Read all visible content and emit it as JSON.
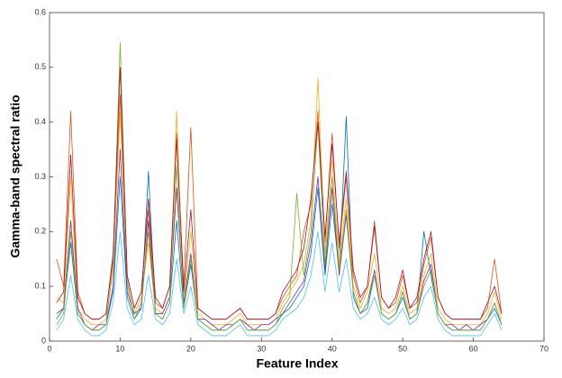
{
  "chart_data": {
    "type": "line",
    "xlabel": "Feature Index",
    "ylabel": "Gamma-band spectral ratio",
    "x": [
      1,
      2,
      3,
      4,
      5,
      6,
      7,
      8,
      9,
      10,
      11,
      12,
      13,
      14,
      15,
      16,
      17,
      18,
      19,
      20,
      21,
      22,
      23,
      24,
      25,
      26,
      27,
      28,
      29,
      30,
      31,
      32,
      33,
      34,
      35,
      36,
      37,
      38,
      39,
      40,
      41,
      42,
      43,
      44,
      45,
      46,
      47,
      48,
      49,
      50,
      51,
      52,
      53,
      54,
      55,
      56,
      57,
      58,
      59,
      60,
      61,
      62,
      63,
      64
    ],
    "xlim": [
      0,
      70
    ],
    "xticks": [
      0,
      10,
      20,
      30,
      40,
      50,
      60,
      70
    ],
    "ylim": [
      0,
      0.6
    ],
    "yticks": [
      0,
      0.1,
      0.2,
      0.3,
      0.4,
      0.5,
      0.6
    ],
    "series": [
      {
        "color": "#0072bd",
        "values": [
          0.04,
          0.06,
          0.18,
          0.05,
          0.03,
          0.02,
          0.02,
          0.03,
          0.09,
          0.3,
          0.08,
          0.04,
          0.06,
          0.31,
          0.05,
          0.04,
          0.07,
          0.22,
          0.06,
          0.14,
          0.04,
          0.03,
          0.02,
          0.02,
          0.02,
          0.03,
          0.04,
          0.02,
          0.02,
          0.02,
          0.02,
          0.03,
          0.05,
          0.06,
          0.08,
          0.1,
          0.16,
          0.28,
          0.12,
          0.25,
          0.13,
          0.41,
          0.08,
          0.05,
          0.06,
          0.12,
          0.05,
          0.04,
          0.05,
          0.08,
          0.04,
          0.05,
          0.2,
          0.12,
          0.05,
          0.03,
          0.02,
          0.02,
          0.02,
          0.02,
          0.02,
          0.04,
          0.06,
          0.03
        ]
      },
      {
        "color": "#d95319",
        "values": [
          0.15,
          0.1,
          0.42,
          0.09,
          0.05,
          0.04,
          0.04,
          0.05,
          0.15,
          0.45,
          0.12,
          0.06,
          0.09,
          0.24,
          0.07,
          0.06,
          0.1,
          0.38,
          0.1,
          0.39,
          0.06,
          0.05,
          0.04,
          0.04,
          0.04,
          0.05,
          0.06,
          0.04,
          0.04,
          0.04,
          0.04,
          0.05,
          0.08,
          0.1,
          0.12,
          0.2,
          0.25,
          0.42,
          0.18,
          0.38,
          0.17,
          0.3,
          0.12,
          0.07,
          0.1,
          0.22,
          0.08,
          0.06,
          0.07,
          0.12,
          0.06,
          0.07,
          0.14,
          0.19,
          0.08,
          0.05,
          0.04,
          0.04,
          0.04,
          0.04,
          0.04,
          0.06,
          0.15,
          0.05
        ]
      },
      {
        "color": "#edb120",
        "values": [
          0.08,
          0.07,
          0.3,
          0.06,
          0.04,
          0.03,
          0.03,
          0.04,
          0.13,
          0.42,
          0.1,
          0.05,
          0.08,
          0.18,
          0.06,
          0.05,
          0.08,
          0.42,
          0.07,
          0.2,
          0.05,
          0.04,
          0.03,
          0.03,
          0.03,
          0.04,
          0.05,
          0.03,
          0.03,
          0.03,
          0.03,
          0.04,
          0.07,
          0.09,
          0.11,
          0.14,
          0.22,
          0.48,
          0.16,
          0.33,
          0.14,
          0.26,
          0.1,
          0.06,
          0.09,
          0.16,
          0.06,
          0.05,
          0.06,
          0.1,
          0.05,
          0.06,
          0.12,
          0.16,
          0.06,
          0.04,
          0.03,
          0.03,
          0.03,
          0.03,
          0.03,
          0.05,
          0.09,
          0.04
        ]
      },
      {
        "color": "#7e2f8e",
        "values": [
          0.05,
          0.06,
          0.22,
          0.06,
          0.03,
          0.02,
          0.03,
          0.03,
          0.1,
          0.35,
          0.09,
          0.05,
          0.06,
          0.22,
          0.05,
          0.05,
          0.08,
          0.28,
          0.07,
          0.16,
          0.04,
          0.04,
          0.03,
          0.02,
          0.03,
          0.03,
          0.04,
          0.03,
          0.02,
          0.03,
          0.03,
          0.04,
          0.05,
          0.07,
          0.09,
          0.11,
          0.18,
          0.3,
          0.13,
          0.28,
          0.12,
          0.23,
          0.09,
          0.05,
          0.07,
          0.13,
          0.05,
          0.04,
          0.05,
          0.09,
          0.04,
          0.05,
          0.11,
          0.14,
          0.05,
          0.03,
          0.03,
          0.02,
          0.03,
          0.02,
          0.03,
          0.04,
          0.07,
          0.03
        ]
      },
      {
        "color": "#77ac30",
        "values": [
          0.03,
          0.05,
          0.2,
          0.05,
          0.03,
          0.02,
          0.02,
          0.03,
          0.14,
          0.545,
          0.11,
          0.04,
          0.07,
          0.2,
          0.05,
          0.04,
          0.07,
          0.32,
          0.06,
          0.15,
          0.04,
          0.03,
          0.02,
          0.02,
          0.02,
          0.03,
          0.04,
          0.02,
          0.02,
          0.02,
          0.02,
          0.03,
          0.06,
          0.08,
          0.27,
          0.12,
          0.2,
          0.4,
          0.14,
          0.3,
          0.13,
          0.24,
          0.09,
          0.05,
          0.07,
          0.12,
          0.05,
          0.04,
          0.05,
          0.09,
          0.04,
          0.05,
          0.1,
          0.13,
          0.05,
          0.03,
          0.02,
          0.02,
          0.02,
          0.02,
          0.02,
          0.04,
          0.07,
          0.03
        ]
      },
      {
        "color": "#4dbeee",
        "values": [
          0.02,
          0.04,
          0.12,
          0.04,
          0.02,
          0.01,
          0.01,
          0.02,
          0.07,
          0.2,
          0.06,
          0.03,
          0.04,
          0.12,
          0.04,
          0.03,
          0.05,
          0.15,
          0.05,
          0.1,
          0.03,
          0.02,
          0.01,
          0.01,
          0.01,
          0.02,
          0.03,
          0.01,
          0.01,
          0.01,
          0.01,
          0.02,
          0.04,
          0.05,
          0.06,
          0.08,
          0.12,
          0.2,
          0.09,
          0.18,
          0.09,
          0.15,
          0.06,
          0.04,
          0.05,
          0.08,
          0.04,
          0.03,
          0.04,
          0.06,
          0.03,
          0.04,
          0.08,
          0.1,
          0.04,
          0.02,
          0.01,
          0.01,
          0.01,
          0.01,
          0.01,
          0.03,
          0.05,
          0.02
        ]
      },
      {
        "color": "#a2142f",
        "values": [
          0.07,
          0.09,
          0.34,
          0.08,
          0.05,
          0.04,
          0.04,
          0.05,
          0.16,
          0.5,
          0.12,
          0.06,
          0.09,
          0.26,
          0.08,
          0.06,
          0.1,
          0.37,
          0.09,
          0.24,
          0.06,
          0.05,
          0.04,
          0.04,
          0.04,
          0.05,
          0.06,
          0.04,
          0.04,
          0.04,
          0.04,
          0.05,
          0.09,
          0.11,
          0.13,
          0.17,
          0.26,
          0.4,
          0.19,
          0.36,
          0.18,
          0.31,
          0.13,
          0.08,
          0.1,
          0.21,
          0.08,
          0.06,
          0.08,
          0.13,
          0.06,
          0.08,
          0.15,
          0.2,
          0.08,
          0.05,
          0.04,
          0.04,
          0.04,
          0.04,
          0.04,
          0.07,
          0.1,
          0.05
        ]
      }
    ]
  }
}
